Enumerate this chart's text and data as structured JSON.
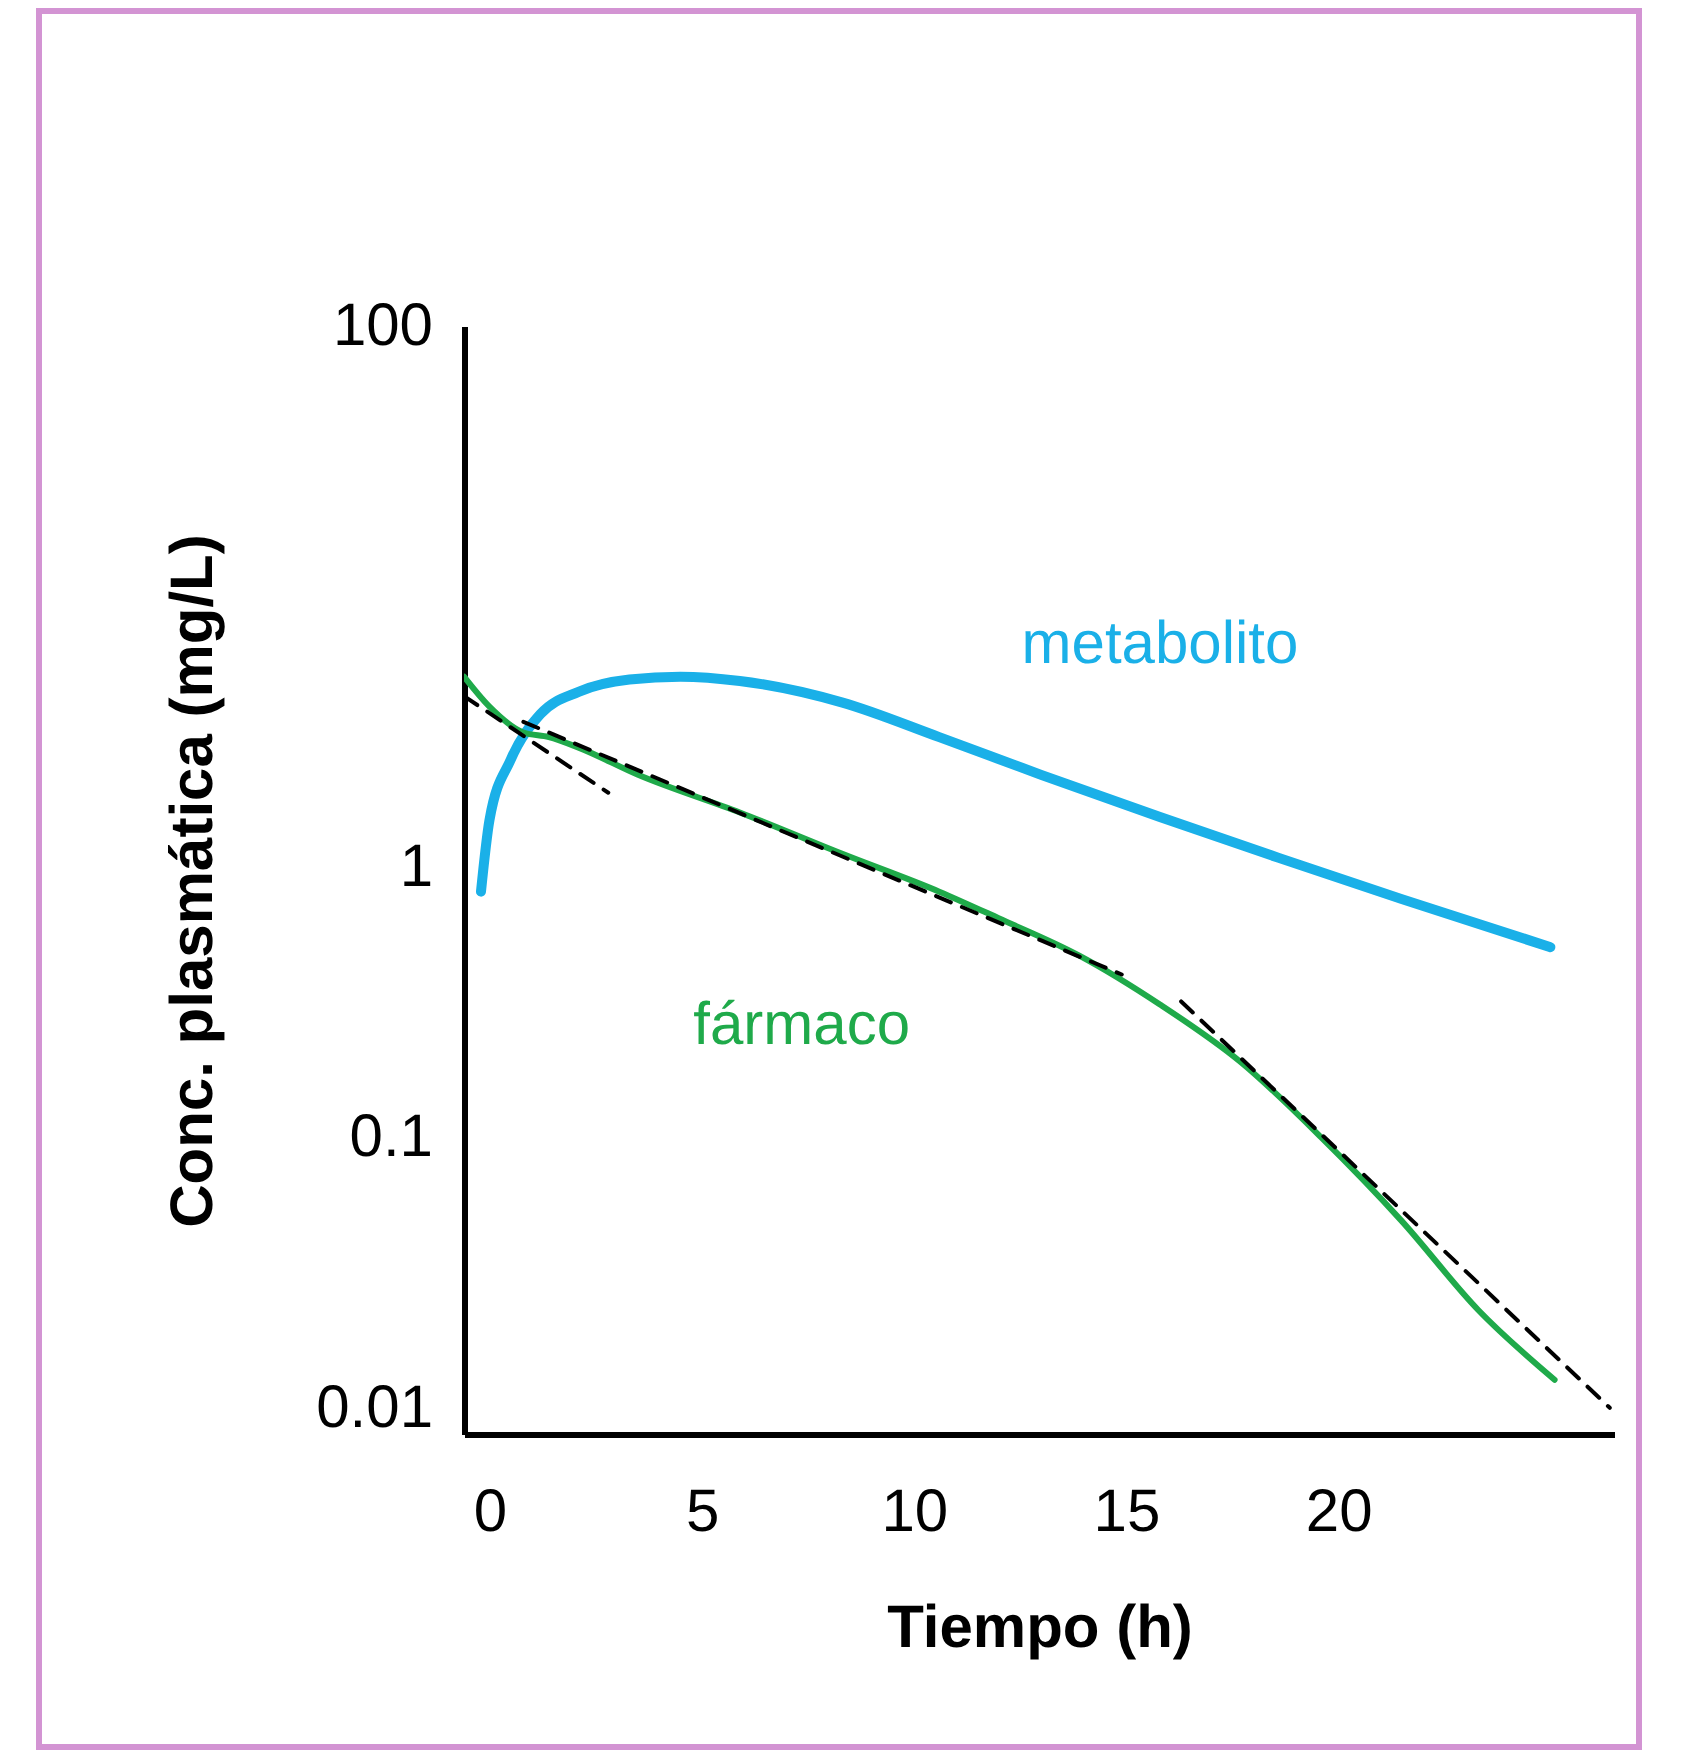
{
  "chart_data": {
    "type": "line",
    "xlabel": "Tiempo (h)",
    "ylabel": "Conc. plasmática (mg/L)",
    "log": "y",
    "grid": false,
    "marker": "none",
    "xlim": [
      -0.6,
      26.5
    ],
    "xticks": [
      0,
      5,
      10,
      15,
      20
    ],
    "ylim": [
      0.008,
      100
    ],
    "yticks": [
      0.01,
      0.1,
      1,
      100
    ],
    "series": [
      {
        "name": "metabolito",
        "color": "#1ab0e8",
        "line_style": "solid",
        "x": [
          -0.2,
          0,
          0.5,
          1.2,
          2.1,
          3.3,
          4.5,
          5.9,
          8.3,
          10.6,
          13.0,
          15.8,
          18.6,
          21.5,
          25.0
        ],
        "values": [
          0.81,
          1.49,
          2.49,
          3.67,
          4.44,
          4.93,
          5.05,
          4.87,
          4.06,
          3.02,
          2.19,
          1.53,
          1.08,
          0.76,
          0.505
        ]
      },
      {
        "name": "fármaco",
        "color": "#1faa4a",
        "line_style": "solid",
        "x": [
          -0.6,
          0,
          0.8,
          1.4,
          2.1,
          3.5,
          5.9,
          8.3,
          10.6,
          12.0,
          13.9,
          15.8,
          17.7,
          19.6,
          21.5,
          23.3,
          25.1
        ],
        "values": [
          5.05,
          3.91,
          3.14,
          3.02,
          2.76,
          2.19,
          1.59,
          1.12,
          0.81,
          0.646,
          0.47,
          0.31,
          0.19,
          0.1,
          0.049,
          0.023,
          0.0127
        ]
      },
      {
        "color": "#000000",
        "line_style": "dashed",
        "x": [
          -0.6,
          2.8
        ],
        "values": [
          4.28,
          1.88
        ]
      },
      {
        "color": "#000000",
        "line_style": "dashed",
        "x": [
          0.8,
          14.9
        ],
        "values": [
          3.44,
          0.4
        ]
      },
      {
        "color": "#000000",
        "line_style": "dashed",
        "x": [
          16.3,
          26.4
        ],
        "values": [
          0.318,
          0.01
        ]
      }
    ]
  }
}
